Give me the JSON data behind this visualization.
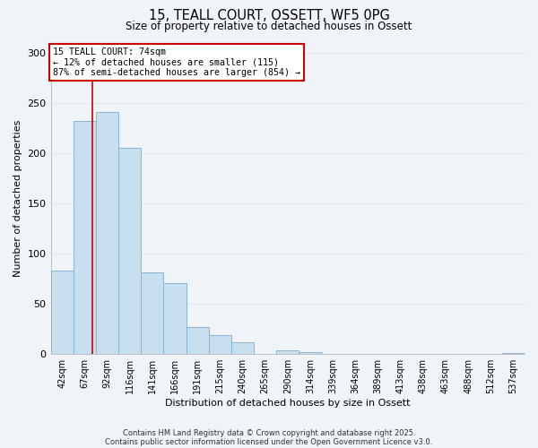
{
  "title": "15, TEALL COURT, OSSETT, WF5 0PG",
  "subtitle": "Size of property relative to detached houses in Ossett",
  "xlabel": "Distribution of detached houses by size in Ossett",
  "ylabel": "Number of detached properties",
  "bar_labels": [
    "42sqm",
    "67sqm",
    "92sqm",
    "116sqm",
    "141sqm",
    "166sqm",
    "191sqm",
    "215sqm",
    "240sqm",
    "265sqm",
    "290sqm",
    "314sqm",
    "339sqm",
    "364sqm",
    "389sqm",
    "413sqm",
    "438sqm",
    "463sqm",
    "488sqm",
    "512sqm",
    "537sqm"
  ],
  "bar_values": [
    83,
    232,
    241,
    205,
    81,
    71,
    27,
    19,
    12,
    0,
    4,
    2,
    0,
    0,
    0,
    0,
    0,
    0,
    0,
    0,
    1
  ],
  "bar_color": "#c8dff0",
  "bar_edge_color": "#8ab4d4",
  "vline_color": "#cc0000",
  "annotation_title": "15 TEALL COURT: 74sqm",
  "annotation_line1": "← 12% of detached houses are smaller (115)",
  "annotation_line2": "87% of semi-detached houses are larger (854) →",
  "annotation_box_color": "#ffffff",
  "annotation_box_edge": "#cc0000",
  "ylim": [
    0,
    310
  ],
  "yticks": [
    0,
    50,
    100,
    150,
    200,
    250,
    300
  ],
  "footnote1": "Contains HM Land Registry data © Crown copyright and database right 2025.",
  "footnote2": "Contains public sector information licensed under the Open Government Licence v3.0.",
  "background_color": "#f0f4f8",
  "grid_color": "#dde8f0",
  "vline_x_pos": 1.35
}
